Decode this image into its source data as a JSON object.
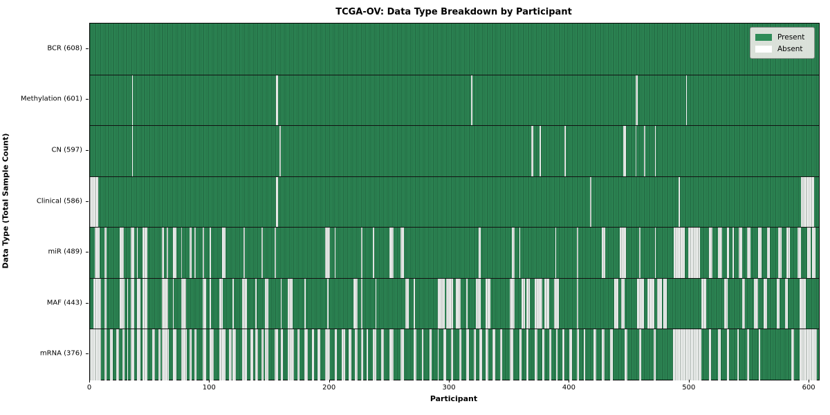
{
  "title": "TCGA-OV: Data Type Breakdown by Participant",
  "x_axis_label": "Participant",
  "y_axis_label": "Data Type (Total Sample Count)",
  "legend": {
    "position": "upper right",
    "present_label": "Present",
    "absent_label": "Absent"
  },
  "colors": {
    "present": "#2E8B57",
    "absent": "#FFFFFF",
    "bar_edge": "rgba(10,35,22,0.5)",
    "row_separator": "#111111",
    "plot_border": "#000000"
  },
  "chart_data": {
    "type": "heatmap",
    "title": "TCGA-OV: Data Type Breakdown by Participant",
    "xlabel": "Participant",
    "ylabel": "Data Type (Total Sample Count)",
    "x_range": [
      0,
      608
    ],
    "x_ticks": [
      0,
      100,
      200,
      300,
      400,
      500,
      600
    ],
    "n_participants": 608,
    "grid": false,
    "legend_entries": [
      "Present",
      "Absent"
    ],
    "rows": [
      {
        "name": "BCR",
        "label": "BCR (608)",
        "present_count": 608,
        "absent_ranges": []
      },
      {
        "name": "Methylation",
        "label": "Methylation (601)",
        "present_count": 601,
        "absent_ranges": [
          [
            35,
            35
          ],
          [
            155,
            156
          ],
          [
            318,
            318
          ],
          [
            455,
            456
          ],
          [
            497,
            497
          ]
        ]
      },
      {
        "name": "CN",
        "label": "CN (597)",
        "present_count": 597,
        "absent_ranges": [
          [
            35,
            35
          ],
          [
            158,
            158
          ],
          [
            368,
            369
          ],
          [
            375,
            375
          ],
          [
            396,
            396
          ],
          [
            445,
            446
          ],
          [
            455,
            455
          ],
          [
            462,
            462
          ],
          [
            471,
            471
          ]
        ]
      },
      {
        "name": "Clinical",
        "label": "Clinical (586)",
        "present_count": 586,
        "absent_ranges": [
          [
            0,
            6
          ],
          [
            155,
            156
          ],
          [
            417,
            417
          ],
          [
            491,
            491
          ],
          [
            593,
            603
          ]
        ]
      },
      {
        "name": "miR",
        "label": "miR (489)",
        "present_count": 489,
        "absent_ranges": [
          [
            4,
            7
          ],
          [
            12,
            13
          ],
          [
            25,
            27
          ],
          [
            34,
            36
          ],
          [
            39,
            39
          ],
          [
            44,
            47
          ],
          [
            60,
            61
          ],
          [
            64,
            64
          ],
          [
            69,
            71
          ],
          [
            76,
            76
          ],
          [
            83,
            84
          ],
          [
            87,
            87
          ],
          [
            94,
            94
          ],
          [
            100,
            100
          ],
          [
            110,
            112
          ],
          [
            128,
            128
          ],
          [
            143,
            143
          ],
          [
            154,
            154
          ],
          [
            196,
            199
          ],
          [
            204,
            204
          ],
          [
            226,
            226
          ],
          [
            236,
            236
          ],
          [
            250,
            252
          ],
          [
            259,
            261
          ],
          [
            324,
            325
          ],
          [
            352,
            353
          ],
          [
            358,
            358
          ],
          [
            388,
            388
          ],
          [
            406,
            406
          ],
          [
            427,
            429
          ],
          [
            442,
            446
          ],
          [
            458,
            458
          ],
          [
            471,
            471
          ],
          [
            487,
            495
          ],
          [
            499,
            508
          ],
          [
            516,
            518
          ],
          [
            524,
            526
          ],
          [
            531,
            532
          ],
          [
            536,
            536
          ],
          [
            541,
            543
          ],
          [
            548,
            550
          ],
          [
            557,
            559
          ],
          [
            565,
            566
          ],
          [
            574,
            576
          ],
          [
            581,
            583
          ],
          [
            590,
            592
          ],
          [
            598,
            600
          ],
          [
            602,
            604
          ]
        ]
      },
      {
        "name": "MAF",
        "label": "MAF (443)",
        "present_count": 443,
        "absent_ranges": [
          [
            3,
            8
          ],
          [
            12,
            13
          ],
          [
            25,
            28
          ],
          [
            31,
            31
          ],
          [
            34,
            36
          ],
          [
            39,
            41
          ],
          [
            44,
            47
          ],
          [
            60,
            64
          ],
          [
            69,
            69
          ],
          [
            76,
            79
          ],
          [
            94,
            96
          ],
          [
            100,
            100
          ],
          [
            108,
            110
          ],
          [
            119,
            119
          ],
          [
            127,
            130
          ],
          [
            138,
            138
          ],
          [
            146,
            148
          ],
          [
            159,
            159
          ],
          [
            165,
            168
          ],
          [
            179,
            179
          ],
          [
            198,
            198
          ],
          [
            220,
            222
          ],
          [
            226,
            226
          ],
          [
            238,
            238
          ],
          [
            263,
            265
          ],
          [
            270,
            270
          ],
          [
            290,
            295
          ],
          [
            297,
            302
          ],
          [
            305,
            308
          ],
          [
            314,
            314
          ],
          [
            322,
            325
          ],
          [
            330,
            333
          ],
          [
            350,
            353
          ],
          [
            360,
            362
          ],
          [
            364,
            366
          ],
          [
            371,
            376
          ],
          [
            379,
            382
          ],
          [
            387,
            390
          ],
          [
            406,
            406
          ],
          [
            437,
            440
          ],
          [
            443,
            445
          ],
          [
            456,
            461
          ],
          [
            465,
            470
          ],
          [
            473,
            476
          ],
          [
            478,
            480
          ],
          [
            510,
            513
          ],
          [
            529,
            531
          ],
          [
            544,
            545
          ],
          [
            554,
            556
          ],
          [
            562,
            564
          ],
          [
            573,
            574
          ],
          [
            580,
            581
          ],
          [
            592,
            596
          ]
        ]
      },
      {
        "name": "mRNA",
        "label": "mRNA (376)",
        "present_count": 376,
        "absent_ranges": [
          [
            0,
            8
          ],
          [
            12,
            13
          ],
          [
            17,
            18
          ],
          [
            22,
            23
          ],
          [
            27,
            28
          ],
          [
            31,
            31
          ],
          [
            34,
            36
          ],
          [
            39,
            41
          ],
          [
            44,
            47
          ],
          [
            52,
            53
          ],
          [
            57,
            58
          ],
          [
            60,
            65
          ],
          [
            69,
            71
          ],
          [
            76,
            80
          ],
          [
            83,
            84
          ],
          [
            87,
            88
          ],
          [
            94,
            96
          ],
          [
            100,
            102
          ],
          [
            108,
            112
          ],
          [
            116,
            117
          ],
          [
            119,
            121
          ],
          [
            127,
            130
          ],
          [
            134,
            135
          ],
          [
            138,
            139
          ],
          [
            143,
            144
          ],
          [
            146,
            148
          ],
          [
            154,
            156
          ],
          [
            159,
            160
          ],
          [
            165,
            169
          ],
          [
            173,
            174
          ],
          [
            179,
            181
          ],
          [
            185,
            186
          ],
          [
            190,
            191
          ],
          [
            196,
            199
          ],
          [
            204,
            205
          ],
          [
            210,
            212
          ],
          [
            216,
            217
          ],
          [
            221,
            222
          ],
          [
            226,
            227
          ],
          [
            231,
            231
          ],
          [
            236,
            238
          ],
          [
            243,
            244
          ],
          [
            250,
            252
          ],
          [
            259,
            261
          ],
          [
            270,
            271
          ],
          [
            277,
            277
          ],
          [
            283,
            284
          ],
          [
            290,
            290
          ],
          [
            295,
            296
          ],
          [
            301,
            302
          ],
          [
            308,
            309
          ],
          [
            314,
            315
          ],
          [
            320,
            321
          ],
          [
            325,
            326
          ],
          [
            330,
            331
          ],
          [
            336,
            337
          ],
          [
            342,
            343
          ],
          [
            350,
            352
          ],
          [
            358,
            359
          ],
          [
            364,
            365
          ],
          [
            371,
            372
          ],
          [
            377,
            378
          ],
          [
            383,
            384
          ],
          [
            389,
            389
          ],
          [
            394,
            395
          ],
          [
            400,
            401
          ],
          [
            406,
            407
          ],
          [
            412,
            412
          ],
          [
            420,
            421
          ],
          [
            427,
            428
          ],
          [
            434,
            435
          ],
          [
            446,
            447
          ],
          [
            458,
            459
          ],
          [
            470,
            471
          ],
          [
            486,
            509
          ],
          [
            516,
            517
          ],
          [
            524,
            525
          ],
          [
            531,
            532
          ],
          [
            540,
            540
          ],
          [
            548,
            549
          ],
          [
            558,
            558
          ],
          [
            585,
            586
          ],
          [
            592,
            605
          ]
        ]
      }
    ]
  }
}
